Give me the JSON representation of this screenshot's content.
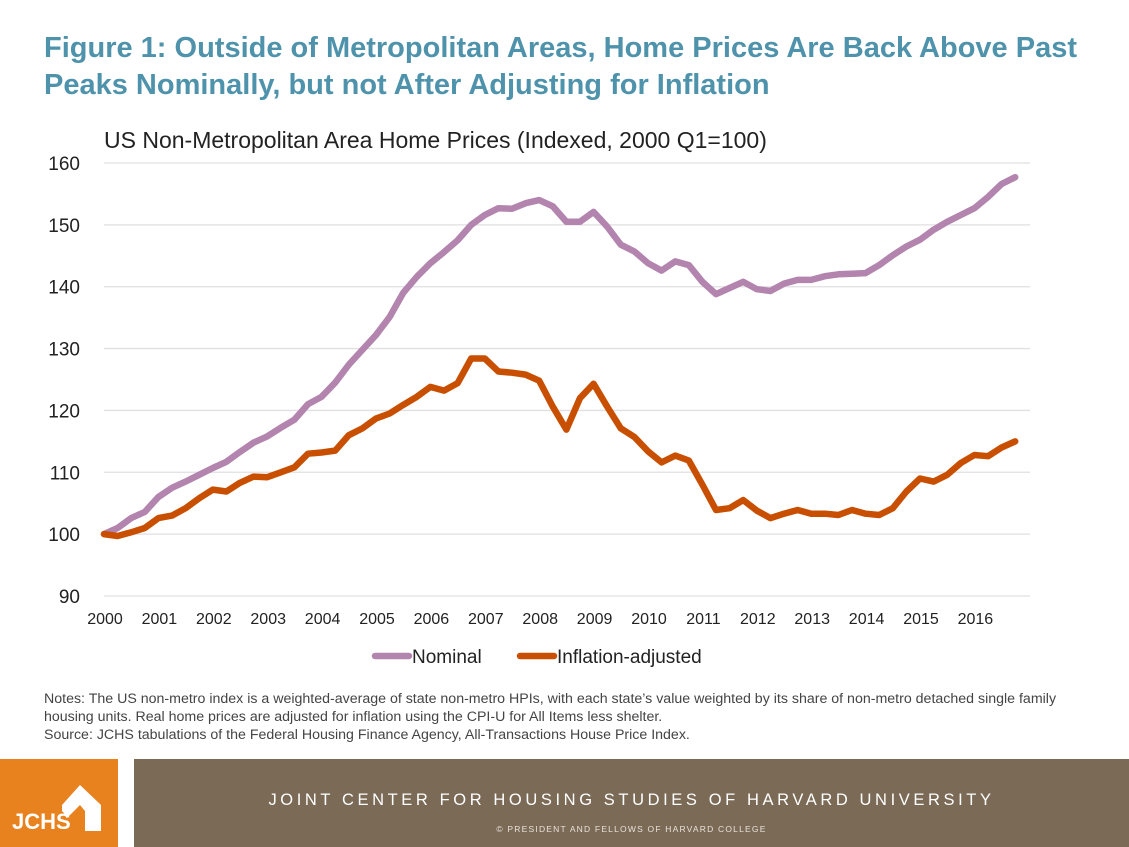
{
  "title": "Figure 1: Outside of Metropolitan Areas, Home Prices Are Back Above Past Peaks Nominally, but not After Adjusting for Inflation",
  "notes": "Notes: The US non-metro index is a weighted-average of state non-metro HPIs, with each state’s value weighted by its share of non-metro detached single family housing units. Real home prices are adjusted for inflation using the CPI-U for All Items less shelter.",
  "source": "Source: JCHS tabulations of the Federal Housing Finance Agency, All-Transactions House Price Index.",
  "footer": {
    "logo_text": "JCHS",
    "organization": "JOINT CENTER FOR HOUSING STUDIES OF HARVARD UNIVERSITY",
    "copyright": "© PRESIDENT AND FELLOWS OF HARVARD COLLEGE",
    "logo_color": "#E8821E",
    "band_color": "#7B6A56"
  },
  "chart_data": {
    "type": "line",
    "title": "US Non-Metropolitan Area Home Prices (Indexed, 2000 Q1=100)",
    "xlabel": "",
    "ylabel": "",
    "frequency": "quarterly",
    "x_start": "2000 Q1",
    "x_end": "2016 Q4",
    "x_ticks": [
      "2000",
      "2001",
      "2002",
      "2003",
      "2004",
      "2005",
      "2006",
      "2007",
      "2008",
      "2009",
      "2010",
      "2011",
      "2012",
      "2013",
      "2014",
      "2015",
      "2016"
    ],
    "y_ticks": [
      90,
      100,
      110,
      120,
      130,
      140,
      150,
      160
    ],
    "ylim": [
      90,
      160
    ],
    "grid": "horizontal",
    "legend": "bottom",
    "series": [
      {
        "name": "Nominal",
        "color": "#B284AE",
        "values": [
          100,
          101,
          102.6,
          103.6,
          106,
          107.5,
          108.5,
          109.6,
          110.7,
          111.7,
          113.3,
          114.8,
          115.8,
          117.2,
          118.5,
          121,
          122.2,
          124.5,
          127.4,
          129.8,
          132.2,
          135.1,
          139,
          141.6,
          143.8,
          145.6,
          147.5,
          150,
          151.6,
          152.7,
          152.6,
          153.5,
          154,
          153,
          150.5,
          150.5,
          152.1,
          149.7,
          146.8,
          145.7,
          143.8,
          142.6,
          144.1,
          143.5,
          140.8,
          138.8,
          139.8,
          140.8,
          139.6,
          139.3,
          140.5,
          141.1,
          141.1,
          141.7,
          142,
          142.1,
          142.2,
          143.5,
          145.1,
          146.5,
          147.6,
          149.2,
          150.5,
          151.6,
          152.7,
          154.5,
          156.6,
          157.7
        ]
      },
      {
        "name": "Inflation-adjusted",
        "color": "#C94F00",
        "values": [
          100,
          99.7,
          100.3,
          101,
          102.6,
          103,
          104.2,
          105.8,
          107.2,
          106.9,
          108.3,
          109.3,
          109.2,
          110,
          110.8,
          113,
          113.2,
          113.5,
          116,
          117.1,
          118.7,
          119.5,
          120.9,
          122.2,
          123.8,
          123.2,
          124.4,
          128.4,
          128.4,
          126.3,
          126.1,
          125.8,
          124.8,
          120.6,
          116.9,
          122,
          124.3,
          120.6,
          117.1,
          115.7,
          113.4,
          111.6,
          112.7,
          111.9,
          108,
          103.9,
          104.2,
          105.5,
          103.8,
          102.6,
          103.3,
          103.9,
          103.3,
          103.3,
          103.1,
          103.9,
          103.3,
          103.1,
          104.2,
          106.9,
          109,
          108.5,
          109.6,
          111.5,
          112.8,
          112.6,
          114,
          115
        ]
      }
    ]
  }
}
